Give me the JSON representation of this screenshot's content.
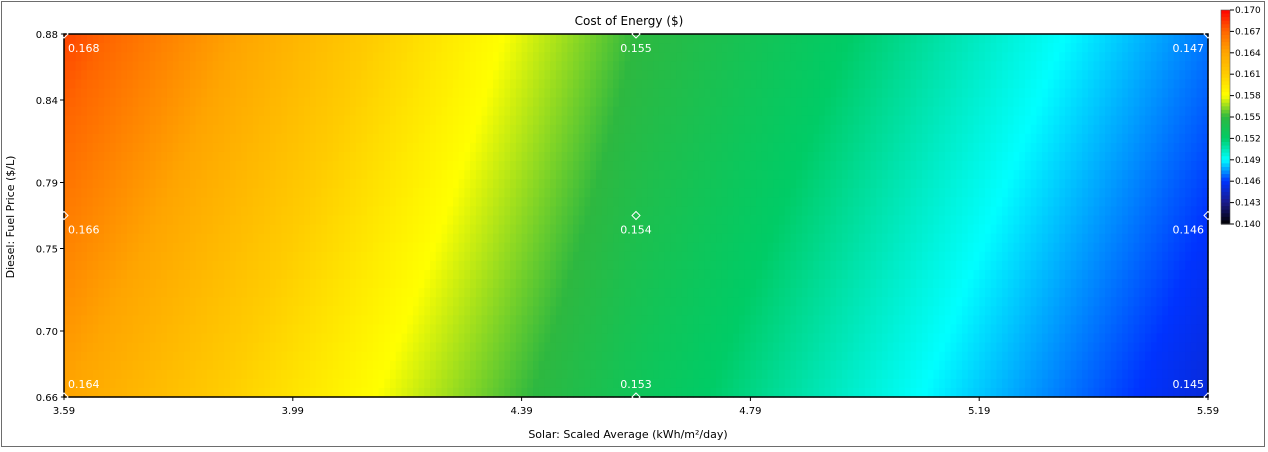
{
  "chart_data": {
    "type": "heatmap",
    "title": "Cost of Energy ($)",
    "xlabel": "Solar: Scaled Average (kWh/m²/day)",
    "ylabel": "Diesel: Fuel Price ($/L)",
    "x_ticks": [
      "3.59",
      "3.99",
      "4.39",
      "4.79",
      "5.19",
      "5.59"
    ],
    "y_ticks": [
      "0.66",
      "0.70",
      "0.75",
      "0.79",
      "0.84",
      "0.88"
    ],
    "xlim": [
      3.59,
      5.59
    ],
    "ylim": [
      0.66,
      0.88
    ],
    "x": [
      3.59,
      4.59,
      5.59
    ],
    "y": [
      0.66,
      0.77,
      0.88
    ],
    "z": [
      [
        0.164,
        0.153,
        0.145
      ],
      [
        0.166,
        0.154,
        0.146
      ],
      [
        0.168,
        0.155,
        0.147
      ]
    ],
    "point_labels": [
      {
        "x": 3.59,
        "y": 0.88,
        "text": "0.168"
      },
      {
        "x": 4.59,
        "y": 0.88,
        "text": "0.155"
      },
      {
        "x": 5.59,
        "y": 0.88,
        "text": "0.147"
      },
      {
        "x": 3.59,
        "y": 0.77,
        "text": "0.166"
      },
      {
        "x": 4.59,
        "y": 0.77,
        "text": "0.154"
      },
      {
        "x": 5.59,
        "y": 0.77,
        "text": "0.146"
      },
      {
        "x": 3.59,
        "y": 0.66,
        "text": "0.164"
      },
      {
        "x": 4.59,
        "y": 0.66,
        "text": "0.153"
      },
      {
        "x": 5.59,
        "y": 0.66,
        "text": "0.145"
      }
    ],
    "colorbar": {
      "range": [
        0.14,
        0.17
      ],
      "ticks": [
        "0.170",
        "0.167",
        "0.164",
        "0.161",
        "0.158",
        "0.155",
        "0.152",
        "0.149",
        "0.146",
        "0.143",
        "0.140"
      ],
      "colors": [
        {
          "value": 0.14,
          "color": "#000000"
        },
        {
          "value": 0.143,
          "color": "#1a1a8c"
        },
        {
          "value": 0.146,
          "color": "#0033ff"
        },
        {
          "value": 0.149,
          "color": "#00ffff"
        },
        {
          "value": 0.152,
          "color": "#00cc66"
        },
        {
          "value": 0.155,
          "color": "#2eb840"
        },
        {
          "value": 0.158,
          "color": "#ffff00"
        },
        {
          "value": 0.161,
          "color": "#ffcc00"
        },
        {
          "value": 0.164,
          "color": "#ffa500"
        },
        {
          "value": 0.167,
          "color": "#ff6600"
        },
        {
          "value": 0.17,
          "color": "#ff0000"
        }
      ]
    },
    "grid": false
  }
}
